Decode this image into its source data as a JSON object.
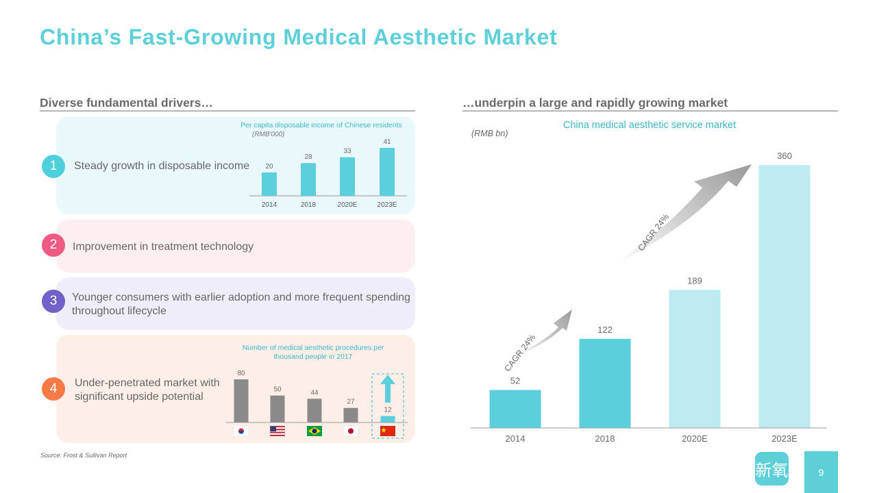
{
  "title": "China’s Fast-Growing Medical Aesthetic Market",
  "left_heading": "Diverse fundamental drivers…",
  "right_heading": "…underpin a large and rapidly growing market",
  "drivers": [
    {
      "num": "1",
      "text": "Steady growth in disposable income",
      "color": "#4fcfdc"
    },
    {
      "num": "2",
      "text": "Improvement in treatment technology",
      "color": "#ef5a85"
    },
    {
      "num": "3",
      "text": "Younger consumers with earlier adoption and more frequent spending throughout lifecycle",
      "color": "#6f63c9"
    },
    {
      "num": "4",
      "text": "Under-penetrated market with significant upside potential",
      "color": "#f57a45"
    }
  ],
  "panel_colors": {
    "p1": "#e9f8fb",
    "p2": "#fdeef0",
    "p3": "#eeedf9",
    "p4": "#fdefe8"
  },
  "source": "Source: Frost & Sullivan Report",
  "logo_text": "新氧",
  "page_number": "9",
  "chart_data": [
    {
      "type": "bar",
      "title": "Per capita disposable income of Chinese residents",
      "unit": "(RMB'000)",
      "categories": [
        "2014",
        "2018",
        "2020E",
        "2023E"
      ],
      "values": [
        20,
        28,
        33,
        41
      ],
      "color": "#5ccfdc"
    },
    {
      "type": "bar",
      "title": "Number of medical aesthetic procedures per thousand people in 2017",
      "categories": [
        "South Korea",
        "United States",
        "Brazil",
        "Japan",
        "China"
      ],
      "values": [
        80,
        50,
        44,
        27,
        12
      ],
      "colors": [
        "#8a8a8a",
        "#8a8a8a",
        "#8a8a8a",
        "#8a8a8a",
        "#5ccfdc"
      ]
    },
    {
      "type": "bar",
      "title": "China medical aesthetic service market",
      "unit": "(RMB bn)",
      "categories": [
        "2014",
        "2018",
        "2020E",
        "2023E"
      ],
      "values": [
        52,
        122,
        189,
        360
      ],
      "colors": [
        "#5ccfdc",
        "#5ccfdc",
        "#bdebf2",
        "#bdebf2"
      ],
      "annotations": [
        "CAGR 24%",
        "CAGR 24%"
      ]
    }
  ]
}
